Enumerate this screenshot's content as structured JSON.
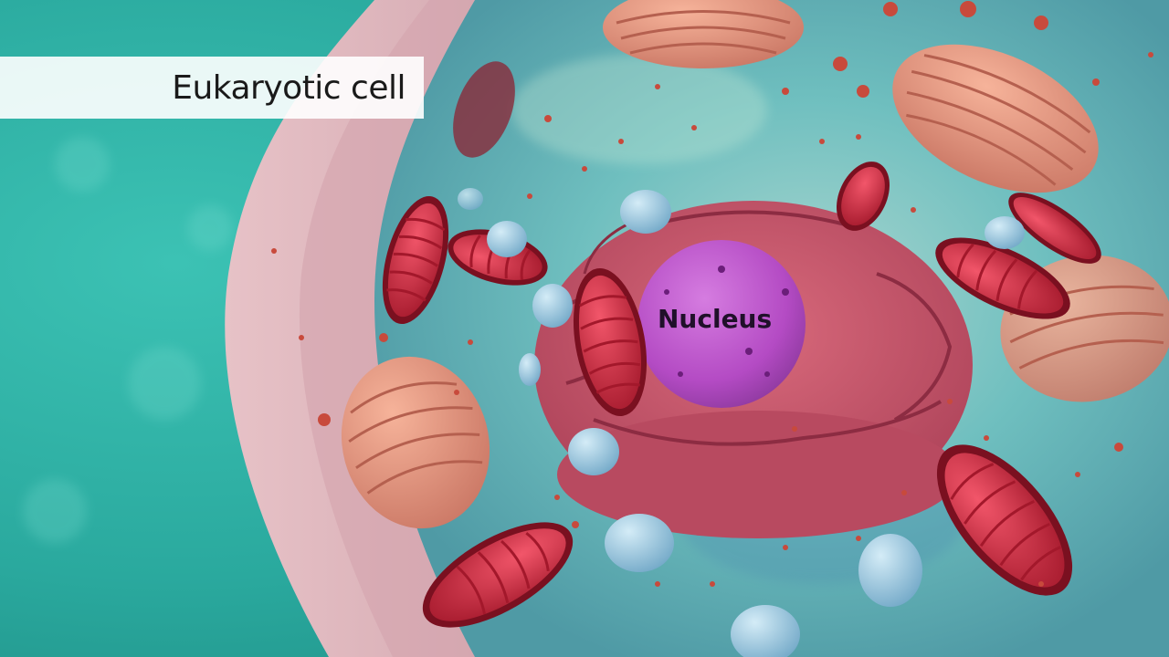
{
  "title": "Eukaryotic cell",
  "labels": {
    "nucleus": "Nucleus"
  },
  "colors": {
    "background": "#2fb5a8",
    "cell_membrane": "#d8a7b0",
    "cytoplasm": "#5fb9b8",
    "endoplasmic_reticulum": "#c9566a",
    "nucleus": "#b84fc6",
    "mitochondria": "#d72a3d",
    "golgi": "#e9907a",
    "vesicles": "#8fc3e0",
    "ribosomes": "#c84a3c"
  }
}
